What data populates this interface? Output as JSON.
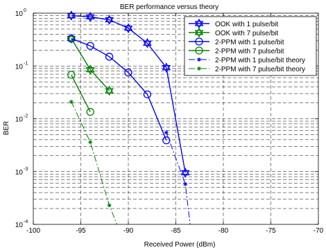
{
  "chart_data": {
    "type": "line",
    "title": "BER performance versus theory",
    "xlabel": "Received Power (dBm)",
    "ylabel": "BER",
    "xlim": [
      -100,
      -70
    ],
    "ylim": [
      0.0001,
      1
    ],
    "yscale": "log",
    "grid": true,
    "legend_position": "top-right",
    "x_ticks": [
      {
        "value": -100,
        "label": "-100"
      },
      {
        "value": -95,
        "label": "-95"
      },
      {
        "value": -90,
        "label": "-90"
      },
      {
        "value": -85,
        "label": "-85"
      },
      {
        "value": -80,
        "label": "-80"
      },
      {
        "value": -75,
        "label": "-75"
      },
      {
        "value": -70,
        "label": "-70"
      }
    ],
    "y_ticks": [
      {
        "value": 0.0001,
        "base": "10",
        "exp": "-4"
      },
      {
        "value": 0.001,
        "base": "10",
        "exp": "-3"
      },
      {
        "value": 0.01,
        "base": "10",
        "exp": "-2"
      },
      {
        "value": 0.1,
        "base": "10",
        "exp": "-1"
      },
      {
        "value": 1,
        "base": "10",
        "exp": "0"
      }
    ],
    "series": [
      {
        "name": "OOK with 1 pulse/bit",
        "color": "#0000ff",
        "line": "solid",
        "marker": "hexagram",
        "x": [
          -96,
          -94,
          -92,
          -90,
          -88,
          -86,
          -84
        ],
        "y": [
          0.9,
          0.85,
          0.75,
          0.52,
          0.27,
          0.093,
          0.00095
        ]
      },
      {
        "name": "OOK with 7 pulse/bit",
        "color": "#008000",
        "line": "solid",
        "marker": "hexagram",
        "x": [
          -96,
          -94,
          -92
        ],
        "y": [
          0.33,
          0.085,
          0.034
        ]
      },
      {
        "name": "2-PPM with 1 pulse/bit",
        "color": "#0000ff",
        "line": "solid",
        "marker": "circle",
        "x": [
          -96,
          -94,
          -92,
          -90,
          -88,
          -86
        ],
        "y": [
          0.33,
          0.24,
          0.15,
          0.075,
          0.029,
          0.0039
        ]
      },
      {
        "name": "2-PPM with 7 pulse/bit",
        "color": "#008000",
        "line": "solid",
        "marker": "circle",
        "x": [
          -96,
          -94
        ],
        "y": [
          0.068,
          0.0135
        ]
      },
      {
        "name": "2-PPM with 1 pulse/bit theory",
        "color": "#0000ff",
        "line": "dashdot",
        "marker": "star",
        "x": [
          -86,
          -84,
          -83.5
        ],
        "y": [
          0.0055,
          0.00058,
          0.0001
        ]
      },
      {
        "name": "2-PPM with 7 pulse/bit theory",
        "color": "#008000",
        "line": "dashdot",
        "marker": "star",
        "x": [
          -96,
          -94,
          -92,
          -91.2
        ],
        "y": [
          0.021,
          0.0036,
          0.00023,
          0.0001
        ]
      }
    ]
  }
}
